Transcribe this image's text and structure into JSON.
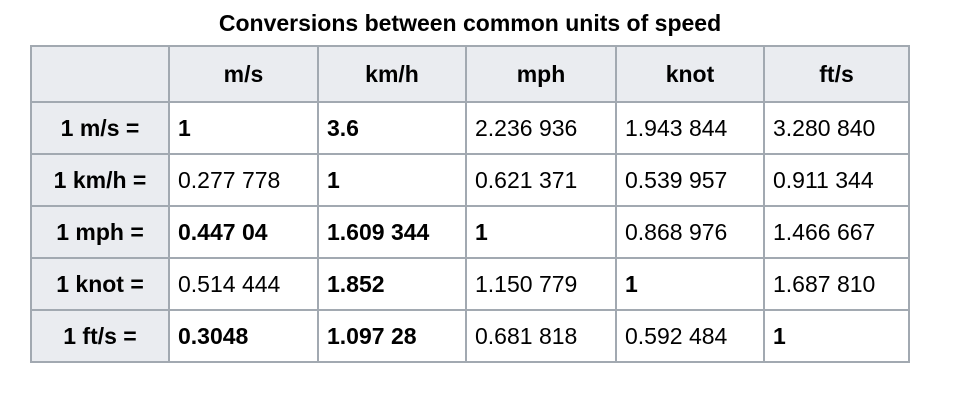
{
  "header": {
    "title": "Conversions between common units of speed"
  },
  "table": {
    "columns": [
      "m/s",
      "km/h",
      "mph",
      "knot",
      "ft/s"
    ],
    "rows": [
      [
        "1 m/s =",
        "1",
        "3.6",
        "2.236 936",
        "1.943 844",
        "3.280 840"
      ],
      [
        "1 km/h =",
        "0.277 778",
        "1",
        "0.621 371",
        "0.539 957",
        "0.911 344"
      ],
      [
        "1 mph =",
        "0.447 04",
        "1.609 344",
        "1",
        "0.868 976",
        "1.466 667"
      ],
      [
        "1 knot =",
        "0.514 444",
        "1.852",
        "1.150 779",
        "1",
        "1.687 810"
      ],
      [
        "1 ft/s =",
        "0.3048",
        "1.097 28",
        "0.681 818",
        "0.592 484",
        "1"
      ]
    ]
  }
}
